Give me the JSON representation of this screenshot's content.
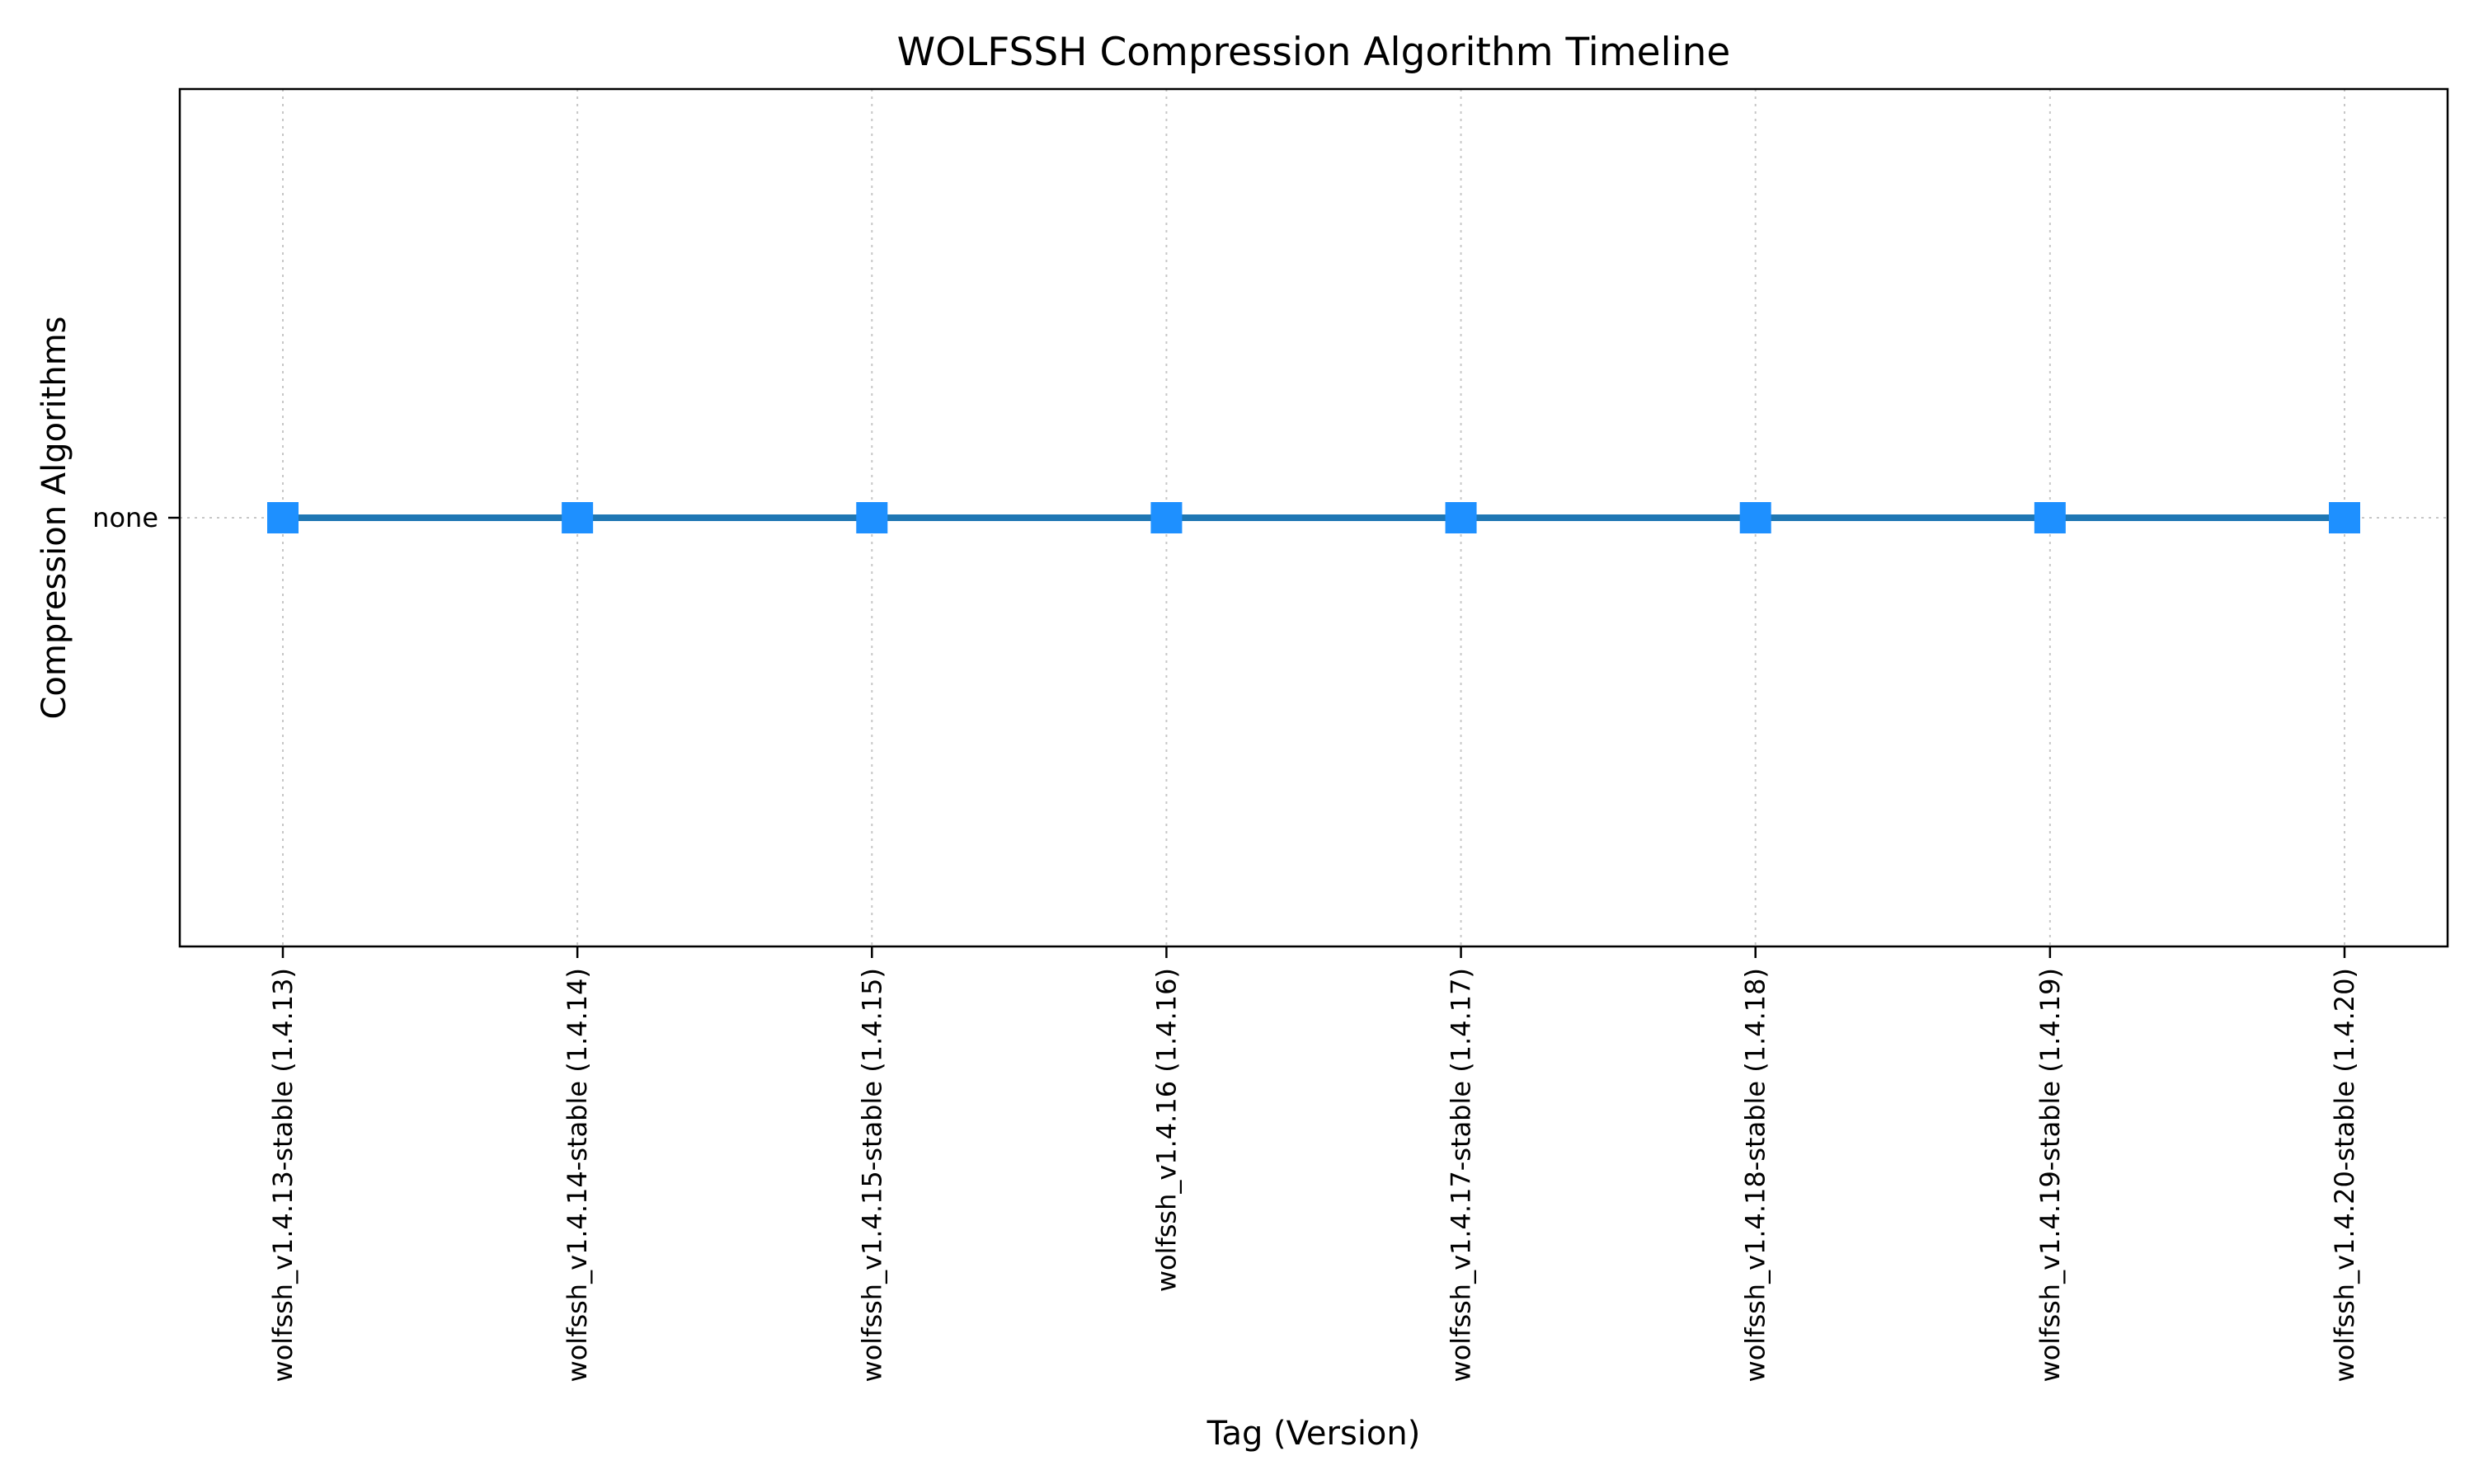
{
  "chart_data": {
    "type": "line",
    "title": "WOLFSSH Compression Algorithm Timeline",
    "xlabel": "Tag (Version)",
    "ylabel": "Compression Algorithms",
    "categories": [
      "wolfssh_v1.4.13-stable (1.4.13)",
      "wolfssh_v1.4.14-stable (1.4.14)",
      "wolfssh_v1.4.15-stable (1.4.15)",
      "wolfssh_v1.4.16 (1.4.16)",
      "wolfssh_v1.4.17-stable (1.4.17)",
      "wolfssh_v1.4.18-stable (1.4.18)",
      "wolfssh_v1.4.19-stable (1.4.19)",
      "wolfssh_v1.4.20-stable (1.4.20)"
    ],
    "y_categories": [
      "none"
    ],
    "series": [
      {
        "values": [
          "none",
          "none",
          "none",
          "none",
          "none",
          "none",
          "none",
          "none"
        ],
        "line_color": "#1f77b4",
        "marker": "square",
        "marker_color": "#1e90ff"
      }
    ],
    "grid": true
  }
}
